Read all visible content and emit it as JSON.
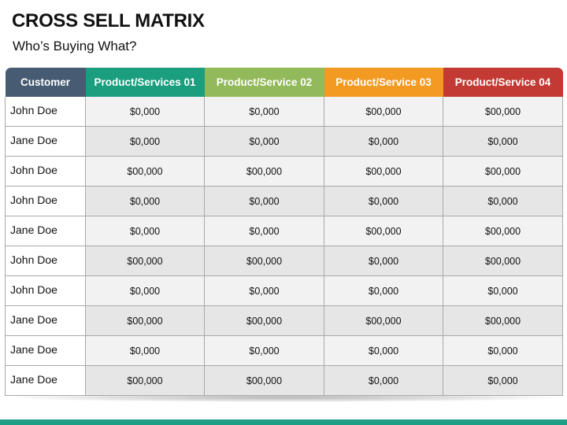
{
  "title": "CROSS SELL MATRIX",
  "subtitle": "Who’s Buying What?",
  "colors": {
    "customer_header": "#475b72",
    "product_01": "#1a9e7e",
    "product_02": "#92b95a",
    "product_03": "#f39a23",
    "product_04": "#c23a33",
    "bottom_band": "#1f9e86"
  },
  "columns": [
    "Customer",
    "Product/Services 01",
    "Product/Service 02",
    "Product/Service 03",
    "Product/Service 04"
  ],
  "rows": [
    {
      "customer": "John Doe",
      "values": [
        "$0,000",
        "$0,000",
        "$00,000",
        "$00,000"
      ]
    },
    {
      "customer": "Jane Doe",
      "values": [
        "$0,000",
        "$0,000",
        "$0,000",
        "$0,000"
      ]
    },
    {
      "customer": "John Doe",
      "values": [
        "$00,000",
        "$00,000",
        "$00,000",
        "$00,000"
      ]
    },
    {
      "customer": "John Doe",
      "values": [
        "$0,000",
        "$0,000",
        "$0,000",
        "$0,000"
      ]
    },
    {
      "customer": "Jane Doe",
      "values": [
        "$0,000",
        "$0,000",
        "$00,000",
        "$00,000"
      ]
    },
    {
      "customer": "John Doe",
      "values": [
        "$00,000",
        "$00,000",
        "$0,000",
        "$00,000"
      ]
    },
    {
      "customer": "John Doe",
      "values": [
        "$0,000",
        "$0,000",
        "$0,000",
        "$0,000"
      ]
    },
    {
      "customer": "Jane Doe",
      "values": [
        "$00,000",
        "$00,000",
        "$00,000",
        "$00,000"
      ]
    },
    {
      "customer": "Jane Doe",
      "values": [
        "$0,000",
        "$0,000",
        "$0,000",
        "$0,000"
      ]
    },
    {
      "customer": "Jane Doe",
      "values": [
        "$00,000",
        "$00,000",
        "$0,000",
        "$0,000"
      ]
    }
  ]
}
